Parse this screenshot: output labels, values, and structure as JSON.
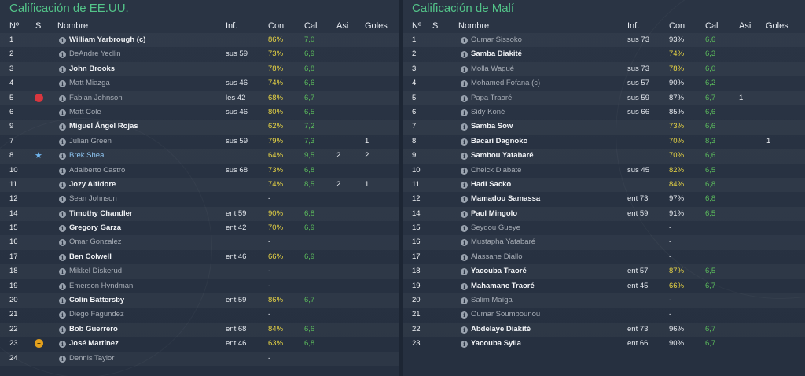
{
  "columns": {
    "num": "Nº",
    "s": "S",
    "name": "Nombre",
    "inf": "Inf.",
    "con": "Con",
    "cal": "Cal",
    "asi": "Asi",
    "goles": "Goles"
  },
  "colors": {
    "title_green": "#53c489",
    "con_yellow": "#e7d444",
    "cal_green": "#5cbf5c",
    "potm_blue": "#8fc6f2",
    "red_card": "#d9363e",
    "yellow_card": "#e3a01c"
  },
  "left": {
    "title": "Calificación de EE.UU.",
    "players": [
      {
        "num": "1",
        "badge": "",
        "name": "William Yarbrough (c)",
        "style": "played",
        "inf": "",
        "con": "86%",
        "con_color": "yellow",
        "cal": "7,0",
        "asi": "",
        "goles": ""
      },
      {
        "num": "2",
        "badge": "",
        "name": "DeAndre Yedlin",
        "style": "unused",
        "inf": "sus 59",
        "con": "73%",
        "con_color": "yellow",
        "cal": "6,9",
        "asi": "",
        "goles": ""
      },
      {
        "num": "3",
        "badge": "",
        "name": "John Brooks",
        "style": "played",
        "inf": "",
        "con": "78%",
        "con_color": "yellow",
        "cal": "6,8",
        "asi": "",
        "goles": ""
      },
      {
        "num": "4",
        "badge": "",
        "name": "Matt Miazga",
        "style": "unused",
        "inf": "sus 46",
        "con": "74%",
        "con_color": "yellow",
        "cal": "6,6",
        "asi": "",
        "goles": ""
      },
      {
        "num": "5",
        "badge": "red-card-icon",
        "name": "Fabian Johnson",
        "style": "unused",
        "inf": "les 42",
        "con": "68%",
        "con_color": "yellow",
        "cal": "6,7",
        "asi": "",
        "goles": ""
      },
      {
        "num": "6",
        "badge": "",
        "name": "Matt Cole",
        "style": "unused",
        "inf": "sus 46",
        "con": "80%",
        "con_color": "yellow",
        "cal": "6,5",
        "asi": "",
        "goles": ""
      },
      {
        "num": "9",
        "badge": "",
        "name": "Miguel Ángel Rojas",
        "style": "played",
        "inf": "",
        "con": "62%",
        "con_color": "yellow",
        "cal": "7,2",
        "asi": "",
        "goles": ""
      },
      {
        "num": "7",
        "badge": "",
        "name": "Julian Green",
        "style": "unused",
        "inf": "sus 59",
        "con": "79%",
        "con_color": "yellow",
        "cal": "7,3",
        "asi": "",
        "goles": "1"
      },
      {
        "num": "8",
        "badge": "star-icon",
        "name": "Brek Shea",
        "style": "potm",
        "inf": "",
        "con": "64%",
        "con_color": "yellow",
        "cal": "9,5",
        "asi": "2",
        "goles": "2"
      },
      {
        "num": "10",
        "badge": "",
        "name": "Adalberto Castro",
        "style": "unused",
        "inf": "sus 68",
        "con": "73%",
        "con_color": "yellow",
        "cal": "6,8",
        "asi": "",
        "goles": ""
      },
      {
        "num": "11",
        "badge": "",
        "name": "Jozy Altidore",
        "style": "played",
        "inf": "",
        "con": "74%",
        "con_color": "yellow",
        "cal": "8,5",
        "asi": "2",
        "goles": "1"
      },
      {
        "num": "12",
        "badge": "",
        "name": "Sean Johnson",
        "style": "unused",
        "inf": "",
        "con": "-",
        "con_color": "dash",
        "cal": "",
        "asi": "",
        "goles": ""
      },
      {
        "num": "14",
        "badge": "",
        "name": "Timothy Chandler",
        "style": "played",
        "inf": "ent 59",
        "con": "90%",
        "con_color": "yellow",
        "cal": "6,8",
        "asi": "",
        "goles": ""
      },
      {
        "num": "15",
        "badge": "",
        "name": "Gregory Garza",
        "style": "played",
        "inf": "ent 42",
        "con": "70%",
        "con_color": "yellow",
        "cal": "6,9",
        "asi": "",
        "goles": ""
      },
      {
        "num": "16",
        "badge": "",
        "name": "Omar Gonzalez",
        "style": "unused",
        "inf": "",
        "con": "-",
        "con_color": "dash",
        "cal": "",
        "asi": "",
        "goles": ""
      },
      {
        "num": "17",
        "badge": "",
        "name": "Ben Colwell",
        "style": "played",
        "inf": "ent 46",
        "con": "66%",
        "con_color": "yellow",
        "cal": "6,9",
        "asi": "",
        "goles": ""
      },
      {
        "num": "18",
        "badge": "",
        "name": "Mikkel Diskerud",
        "style": "unused",
        "inf": "",
        "con": "-",
        "con_color": "dash",
        "cal": "",
        "asi": "",
        "goles": ""
      },
      {
        "num": "19",
        "badge": "",
        "name": "Emerson Hyndman",
        "style": "unused",
        "inf": "",
        "con": "-",
        "con_color": "dash",
        "cal": "",
        "asi": "",
        "goles": ""
      },
      {
        "num": "20",
        "badge": "",
        "name": "Colin Battersby",
        "style": "played",
        "inf": "ent 59",
        "con": "86%",
        "con_color": "yellow",
        "cal": "6,7",
        "asi": "",
        "goles": ""
      },
      {
        "num": "21",
        "badge": "",
        "name": "Diego Fagundez",
        "style": "unused",
        "inf": "",
        "con": "-",
        "con_color": "dash",
        "cal": "",
        "asi": "",
        "goles": ""
      },
      {
        "num": "22",
        "badge": "",
        "name": "Bob Guerrero",
        "style": "played",
        "inf": "ent 68",
        "con": "84%",
        "con_color": "yellow",
        "cal": "6,6",
        "asi": "",
        "goles": ""
      },
      {
        "num": "23",
        "badge": "yellow-card-icon",
        "name": "José Martínez",
        "style": "played",
        "inf": "ent 46",
        "con": "63%",
        "con_color": "yellow",
        "cal": "6,8",
        "asi": "",
        "goles": ""
      },
      {
        "num": "24",
        "badge": "",
        "name": "Dennis Taylor",
        "style": "unused",
        "inf": "",
        "con": "-",
        "con_color": "dash",
        "cal": "",
        "asi": "",
        "goles": ""
      }
    ]
  },
  "right": {
    "title": "Calificación de Malí",
    "players": [
      {
        "num": "1",
        "badge": "",
        "name": "Oumar Sissoko",
        "style": "unused",
        "inf": "sus 73",
        "con": "93%",
        "con_color": "white",
        "cal": "6,6",
        "asi": "",
        "goles": ""
      },
      {
        "num": "2",
        "badge": "",
        "name": "Samba Diakité",
        "style": "played",
        "inf": "",
        "con": "74%",
        "con_color": "yellow",
        "cal": "6,3",
        "asi": "",
        "goles": ""
      },
      {
        "num": "3",
        "badge": "",
        "name": "Molla Wagué",
        "style": "unused",
        "inf": "sus 73",
        "con": "78%",
        "con_color": "yellow",
        "cal": "6,0",
        "asi": "",
        "goles": ""
      },
      {
        "num": "4",
        "badge": "",
        "name": "Mohamed Fofana (c)",
        "style": "unused",
        "inf": "sus 57",
        "con": "90%",
        "con_color": "white",
        "cal": "6,2",
        "asi": "",
        "goles": ""
      },
      {
        "num": "5",
        "badge": "",
        "name": "Papa Traoré",
        "style": "unused",
        "inf": "sus 59",
        "con": "87%",
        "con_color": "white",
        "cal": "6,7",
        "asi": "1",
        "goles": ""
      },
      {
        "num": "6",
        "badge": "",
        "name": "Sidy Koné",
        "style": "unused",
        "inf": "sus 66",
        "con": "85%",
        "con_color": "white",
        "cal": "6,6",
        "asi": "",
        "goles": ""
      },
      {
        "num": "7",
        "badge": "",
        "name": "Samba Sow",
        "style": "played",
        "inf": "",
        "con": "73%",
        "con_color": "yellow",
        "cal": "6,6",
        "asi": "",
        "goles": ""
      },
      {
        "num": "8",
        "badge": "",
        "name": "Bacari Dagnoko",
        "style": "played",
        "inf": "",
        "con": "70%",
        "con_color": "yellow",
        "cal": "8,3",
        "asi": "",
        "goles": "1"
      },
      {
        "num": "9",
        "badge": "",
        "name": "Sambou Yatabaré",
        "style": "played",
        "inf": "",
        "con": "70%",
        "con_color": "yellow",
        "cal": "6,6",
        "asi": "",
        "goles": ""
      },
      {
        "num": "10",
        "badge": "",
        "name": "Cheick Diabaté",
        "style": "unused",
        "inf": "sus 45",
        "con": "82%",
        "con_color": "yellow",
        "cal": "6,5",
        "asi": "",
        "goles": ""
      },
      {
        "num": "11",
        "badge": "",
        "name": "Hadi Sacko",
        "style": "played",
        "inf": "",
        "con": "84%",
        "con_color": "yellow",
        "cal": "6,8",
        "asi": "",
        "goles": ""
      },
      {
        "num": "12",
        "badge": "",
        "name": "Mamadou Samassa",
        "style": "played",
        "inf": "ent 73",
        "con": "97%",
        "con_color": "white",
        "cal": "6,8",
        "asi": "",
        "goles": ""
      },
      {
        "num": "14",
        "badge": "",
        "name": "Paul Mingolo",
        "style": "played",
        "inf": "ent 59",
        "con": "91%",
        "con_color": "white",
        "cal": "6,5",
        "asi": "",
        "goles": ""
      },
      {
        "num": "15",
        "badge": "",
        "name": "Seydou Gueye",
        "style": "unused",
        "inf": "",
        "con": "-",
        "con_color": "dash",
        "cal": "",
        "asi": "",
        "goles": ""
      },
      {
        "num": "16",
        "badge": "",
        "name": "Mustapha Yatabaré",
        "style": "unused",
        "inf": "",
        "con": "-",
        "con_color": "dash",
        "cal": "",
        "asi": "",
        "goles": ""
      },
      {
        "num": "17",
        "badge": "",
        "name": "Alassane Diallo",
        "style": "unused",
        "inf": "",
        "con": "-",
        "con_color": "dash",
        "cal": "",
        "asi": "",
        "goles": ""
      },
      {
        "num": "18",
        "badge": "",
        "name": "Yacouba Traoré",
        "style": "played",
        "inf": "ent 57",
        "con": "87%",
        "con_color": "yellow",
        "cal": "6,5",
        "asi": "",
        "goles": ""
      },
      {
        "num": "19",
        "badge": "",
        "name": "Mahamane Traoré",
        "style": "played",
        "inf": "ent 45",
        "con": "66%",
        "con_color": "yellow",
        "cal": "6,7",
        "asi": "",
        "goles": ""
      },
      {
        "num": "20",
        "badge": "",
        "name": "Salim Maïga",
        "style": "unused",
        "inf": "",
        "con": "-",
        "con_color": "dash",
        "cal": "",
        "asi": "",
        "goles": ""
      },
      {
        "num": "21",
        "badge": "",
        "name": "Oumar Soumbounou",
        "style": "unused",
        "inf": "",
        "con": "-",
        "con_color": "dash",
        "cal": "",
        "asi": "",
        "goles": ""
      },
      {
        "num": "22",
        "badge": "",
        "name": "Abdelaye Diakité",
        "style": "played",
        "inf": "ent 73",
        "con": "96%",
        "con_color": "white",
        "cal": "6,7",
        "asi": "",
        "goles": ""
      },
      {
        "num": "23",
        "badge": "",
        "name": "Yacouba Sylla",
        "style": "played",
        "inf": "ent 66",
        "con": "90%",
        "con_color": "white",
        "cal": "6,7",
        "asi": "",
        "goles": ""
      }
    ]
  }
}
